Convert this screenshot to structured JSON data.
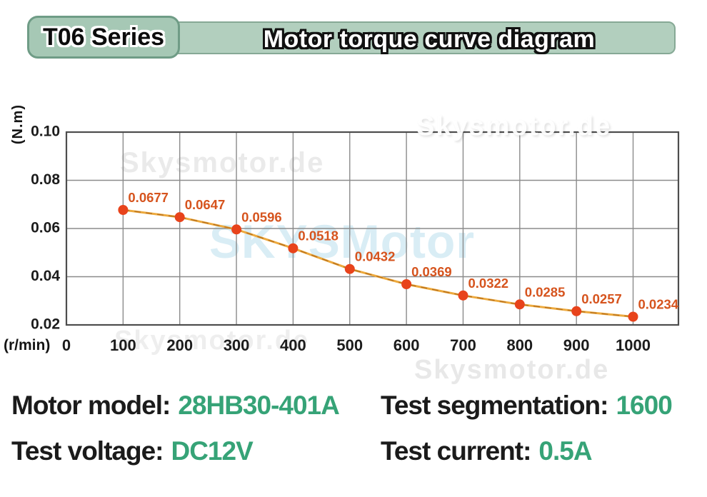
{
  "header": {
    "badge_label": "T06 Series",
    "title": "Motor torque curve diagram",
    "badge_bg": "#a6c8b5",
    "badge_border": "#6f9c86",
    "bar_bg": "#b2cfbe",
    "bar_border": "#86a995"
  },
  "watermarks": {
    "site_text": "Skysmotor.de",
    "brand_text": "SKYSMotor"
  },
  "chart_data": {
    "type": "line",
    "xlabel": "(r/min)",
    "ylabel": "(N.m)",
    "x": [
      100,
      200,
      300,
      400,
      500,
      600,
      700,
      800,
      900,
      1000
    ],
    "values": [
      0.0677,
      0.0647,
      0.0596,
      0.0518,
      0.0432,
      0.0369,
      0.0322,
      0.0285,
      0.0257,
      0.0234
    ],
    "point_labels": [
      "0.0677",
      "0.0647",
      "0.0596",
      "0.0518",
      "0.0432",
      "0.0369",
      "0.0322",
      "0.0285",
      "0.0257",
      "0.0234"
    ],
    "x_ticks": [
      0,
      100,
      200,
      300,
      400,
      500,
      600,
      700,
      800,
      900,
      1000
    ],
    "y_ticks": [
      "0.10",
      "0.08",
      "0.06",
      "0.04",
      "0.02"
    ],
    "xlim": [
      0,
      1080
    ],
    "ylim": [
      0.02,
      0.1
    ],
    "grid": true,
    "legend": false,
    "line_color": "#edaa3e",
    "line_dash_color": "#b06a1a",
    "point_color": "#e8431b",
    "point_label_color": "#d6541e",
    "grid_color": "#8b8b8b",
    "axis_border_color": "#4d4d4d",
    "tick_color": "#1c1c1c"
  },
  "info": {
    "accent_color": "#36a377",
    "text_color": "#1b1b1b",
    "rows": [
      [
        {
          "label": "Motor model:",
          "value": "28HB30-401A"
        },
        {
          "label": "Test segmentation:",
          "value": "1600"
        }
      ],
      [
        {
          "label": "Test voltage:",
          "value": "DC12V"
        },
        {
          "label": "Test current:",
          "value": "0.5A"
        }
      ]
    ]
  }
}
